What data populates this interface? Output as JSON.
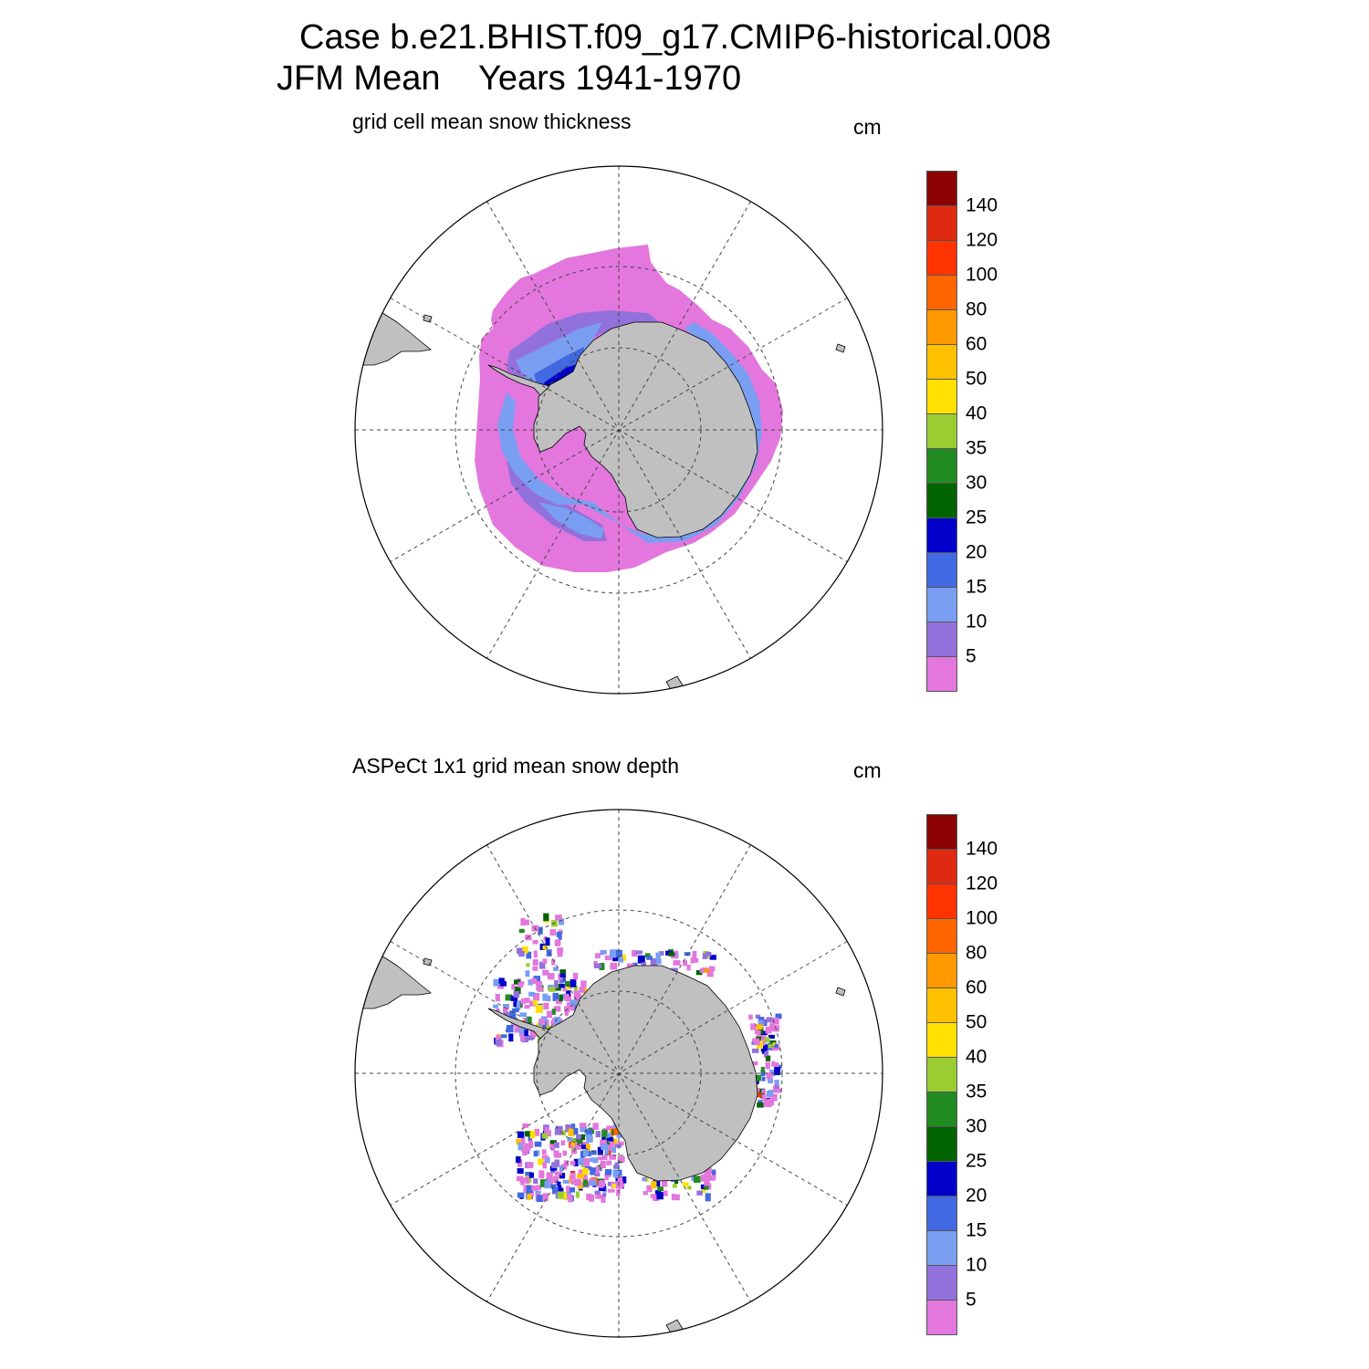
{
  "title": {
    "line1": "Case b.e21.BHIST.f09_g17.CMIP6-historical.008",
    "line2": "JFM Mean    Years 1941-1970"
  },
  "panels": [
    {
      "id": "top",
      "title": "grid cell mean snow thickness",
      "units": "cm"
    },
    {
      "id": "bottom",
      "title": "ASPeCt 1x1 grid mean snow depth",
      "units": "cm"
    }
  ],
  "colorbar": {
    "levels": [
      "5",
      "10",
      "15",
      "20",
      "25",
      "30",
      "35",
      "40",
      "50",
      "60",
      "80",
      "100",
      "120",
      "140"
    ],
    "colors": [
      "#e377dd",
      "#9371dc",
      "#7a9ef2",
      "#4169e1",
      "#0000c8",
      "#006400",
      "#228b22",
      "#9acd32",
      "#ffe000",
      "#ffc000",
      "#ff9900",
      "#ff6600",
      "#ff3300",
      "#dd2a11",
      "#8b0000"
    ]
  },
  "map_colors": {
    "land": "#c0c0c0",
    "ocean": "#ffffff",
    "grid_line": "#444444"
  }
}
